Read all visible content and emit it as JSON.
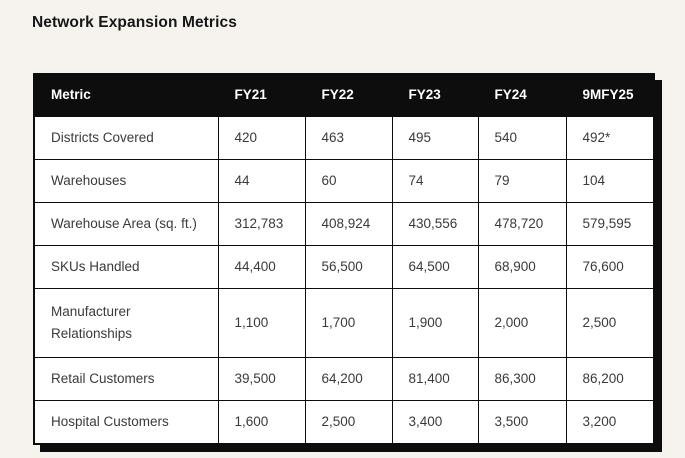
{
  "title": "Network Expansion Metrics",
  "colors": {
    "page_background": "#f6f3ee",
    "header_background": "#0d0d0d",
    "header_text": "#ffffff",
    "cell_text": "#3a3a3a",
    "border": "#0d0d0d",
    "shadow": "#0d0d0d",
    "cell_background": "#ffffff"
  },
  "chart_data": {
    "type": "table",
    "title": "Network Expansion Metrics",
    "columns": [
      "Metric",
      "FY21",
      "FY22",
      "FY23",
      "FY24",
      "9MFY25"
    ],
    "rows": [
      {
        "metric": "Districts Covered",
        "values": [
          "420",
          "463",
          "495",
          "540",
          "492*"
        ]
      },
      {
        "metric": "Warehouses",
        "values": [
          "44",
          "60",
          "74",
          "79",
          "104"
        ]
      },
      {
        "metric": "Warehouse Area (sq. ft.)",
        "values": [
          "312,783",
          "408,924",
          "430,556",
          "478,720",
          "579,595"
        ]
      },
      {
        "metric": "SKUs Handled",
        "values": [
          "44,400",
          "56,500",
          "64,500",
          "68,900",
          "76,600"
        ]
      },
      {
        "metric": "Manufacturer Relationships",
        "values": [
          "1,100",
          "1,700",
          "1,900",
          "2,000",
          "2,500"
        ]
      },
      {
        "metric": "Retail Customers",
        "values": [
          "39,500",
          "64,200",
          "81,400",
          "86,300",
          "86,200"
        ]
      },
      {
        "metric": "Hospital Customers",
        "values": [
          "1,600",
          "2,500",
          "3,400",
          "3,500",
          "3,200"
        ]
      }
    ]
  }
}
